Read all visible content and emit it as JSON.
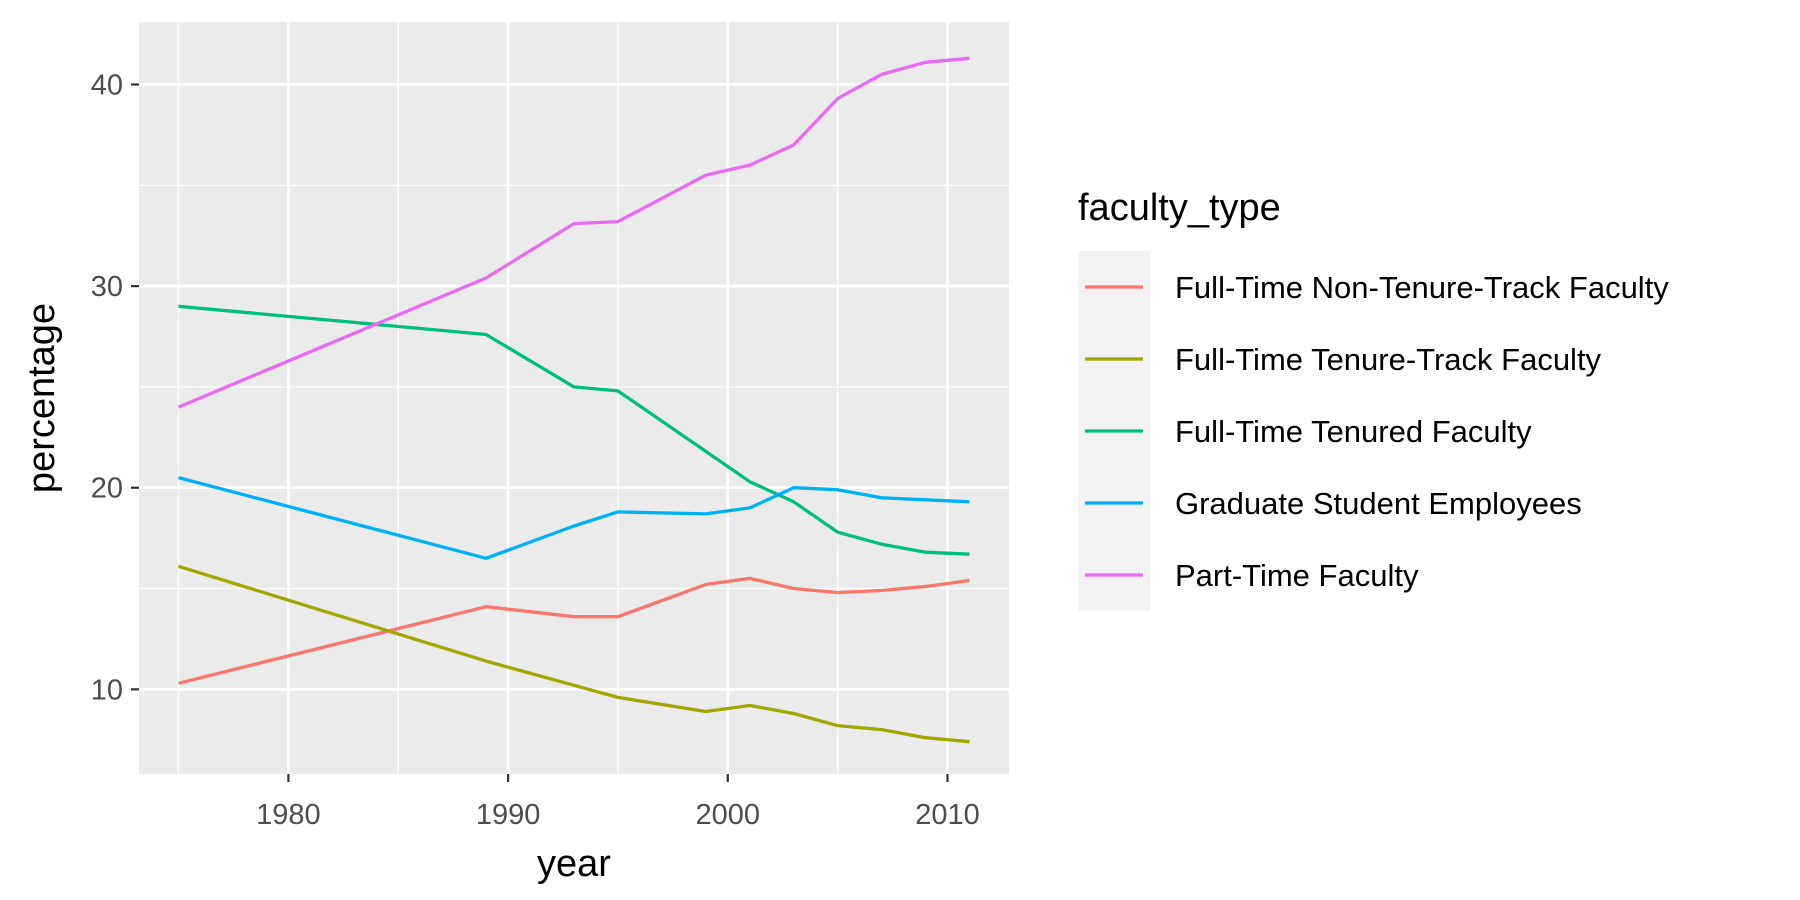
{
  "chart_data": {
    "type": "line",
    "xlabel": "year",
    "ylabel": "percentage",
    "xlim": [
      1973.2,
      2012.8
    ],
    "ylim": [
      5.8,
      43.1
    ],
    "x_ticks": [
      1980,
      1990,
      2000,
      2010
    ],
    "y_ticks": [
      10,
      20,
      30,
      40
    ],
    "grid": true,
    "legend_title": "faculty_type",
    "legend_position": "right",
    "x": [
      1975,
      1989,
      1993,
      1995,
      1999,
      2001,
      2003,
      2005,
      2007,
      2009,
      2011
    ],
    "series": [
      {
        "name": "Full-Time Non-Tenure-Track Faculty",
        "color": "#F8766D",
        "values": [
          10.3,
          14.1,
          13.6,
          13.6,
          15.2,
          15.5,
          15.0,
          14.8,
          14.9,
          15.1,
          15.4
        ]
      },
      {
        "name": "Full-Time Tenure-Track Faculty",
        "color": "#A3A500",
        "values": [
          16.1,
          11.4,
          10.2,
          9.6,
          8.9,
          9.2,
          8.8,
          8.2,
          8.0,
          7.6,
          7.4
        ]
      },
      {
        "name": "Full-Time Tenured Faculty",
        "color": "#00BF7D",
        "values": [
          29.0,
          27.6,
          25.0,
          24.8,
          21.8,
          20.3,
          19.3,
          17.8,
          17.2,
          16.8,
          16.7
        ]
      },
      {
        "name": "Graduate Student Employees",
        "color": "#00B0F6",
        "values": [
          20.5,
          16.5,
          18.1,
          18.8,
          18.7,
          19.0,
          20.0,
          19.9,
          19.5,
          19.4,
          19.3
        ]
      },
      {
        "name": "Part-Time Faculty",
        "color": "#E76BF3",
        "values": [
          24.0,
          30.4,
          33.1,
          33.2,
          35.5,
          36.0,
          37.0,
          39.3,
          40.5,
          41.1,
          41.3
        ]
      }
    ]
  }
}
